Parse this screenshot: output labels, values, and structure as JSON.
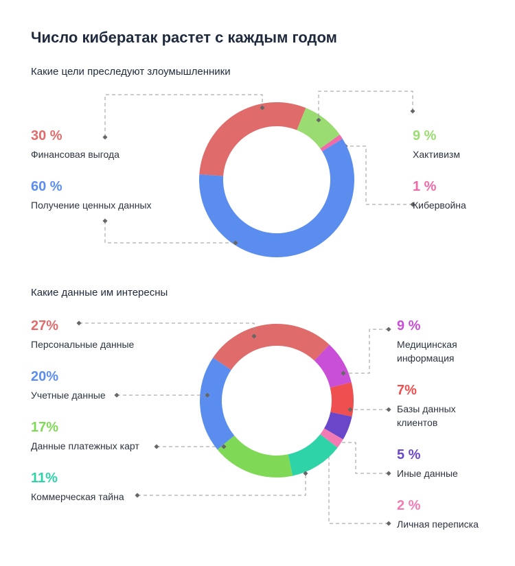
{
  "title": "Число кибератак растет с каждым годом",
  "chart_data": [
    {
      "type": "pie",
      "title": "Какие цели преследуют злоумышленники",
      "categories": [
        "Хактивизм",
        "Кибервойна",
        "Получение ценных данных",
        "Финансовая выгода"
      ],
      "values": [
        9,
        1,
        60,
        30
      ],
      "value_labels": [
        "9 %",
        "1 %",
        "60 %",
        "30 %"
      ],
      "colors": [
        "#9bdc72",
        "#f06aa8",
        "#5b8def",
        "#e06b6b"
      ]
    },
    {
      "type": "pie",
      "title": "Какие данные им интересны",
      "categories": [
        "Персональные данные",
        "Медицинская информация",
        "Базы данных клиентов",
        "Иные данные",
        "Личная переписка",
        "Коммерческая тайна",
        "Данные платежных карт",
        "Учетные данные"
      ],
      "values": [
        27,
        9,
        7,
        5,
        2,
        11,
        17,
        20
      ],
      "value_labels": [
        "27%",
        "9 %",
        "7%",
        "5 %",
        "2 %",
        "11%",
        "17%",
        "20%"
      ],
      "colors": [
        "#e06b6b",
        "#c94fd6",
        "#f04f4f",
        "#6a46c8",
        "#f47ab4",
        "#2fd3a8",
        "#7fd957",
        "#5b8def"
      ]
    }
  ]
}
